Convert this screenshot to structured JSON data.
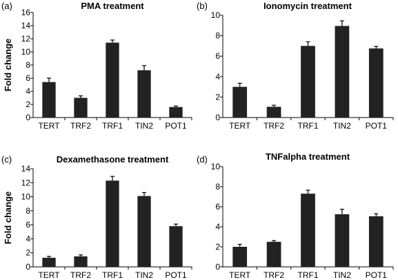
{
  "chart_data": [
    {
      "type": "bar",
      "panel": "(a)",
      "title": "PMA treatment",
      "ylabel": "Fold change",
      "xlabel": "",
      "categories": [
        "TERT",
        "TRF2",
        "TRF1",
        "TIN2",
        "POT1"
      ],
      "values": [
        5.4,
        3.0,
        11.4,
        7.2,
        1.6
      ],
      "errors": [
        0.6,
        0.3,
        0.4,
        0.7,
        0.15
      ],
      "ylim": [
        0,
        16
      ],
      "yticks": [
        0,
        2,
        4,
        6,
        8,
        10,
        12,
        14,
        16
      ],
      "bar_color": "#222222",
      "grid": false,
      "legend": "none"
    },
    {
      "type": "bar",
      "panel": "(b)",
      "title": "Ionomycin treatment",
      "ylabel": "",
      "xlabel": "",
      "categories": [
        "TERT",
        "TRF2",
        "TRF1",
        "TIN2",
        "POT1"
      ],
      "values": [
        3.0,
        1.05,
        7.0,
        8.95,
        6.75
      ],
      "errors": [
        0.35,
        0.15,
        0.4,
        0.5,
        0.2
      ],
      "ylim": [
        0,
        10
      ],
      "yticks": [
        0,
        2,
        4,
        6,
        8,
        10
      ],
      "bar_color": "#222222",
      "grid": false,
      "legend": "none"
    },
    {
      "type": "bar",
      "panel": "(c)",
      "title": "Dexamethasone  treatment",
      "ylabel": "Fold change",
      "xlabel": "",
      "categories": [
        "TERT",
        "TRF2",
        "TRF1",
        "TIN2",
        "POT1"
      ],
      "values": [
        1.3,
        1.5,
        12.3,
        10.1,
        5.8
      ],
      "errors": [
        0.2,
        0.2,
        0.6,
        0.5,
        0.3
      ],
      "ylim": [
        0,
        14
      ],
      "yticks": [
        0,
        2,
        4,
        6,
        8,
        10,
        12,
        14
      ],
      "bar_color": "#222222",
      "grid": false,
      "legend": "none"
    },
    {
      "type": "bar",
      "panel": "(d)",
      "title": "TNFalpha treatment",
      "ylabel": "",
      "xlabel": "",
      "categories": [
        "TERT",
        "TRF2",
        "TRF1",
        "TIN2",
        "POT1"
      ],
      "values": [
        2.0,
        2.5,
        7.3,
        5.25,
        5.05
      ],
      "errors": [
        0.25,
        0.12,
        0.35,
        0.5,
        0.25
      ],
      "ylim": [
        0,
        10
      ],
      "yticks": [
        0,
        2,
        4,
        6,
        8,
        10
      ],
      "bar_color": "#222222",
      "grid": false,
      "legend": "none"
    }
  ]
}
